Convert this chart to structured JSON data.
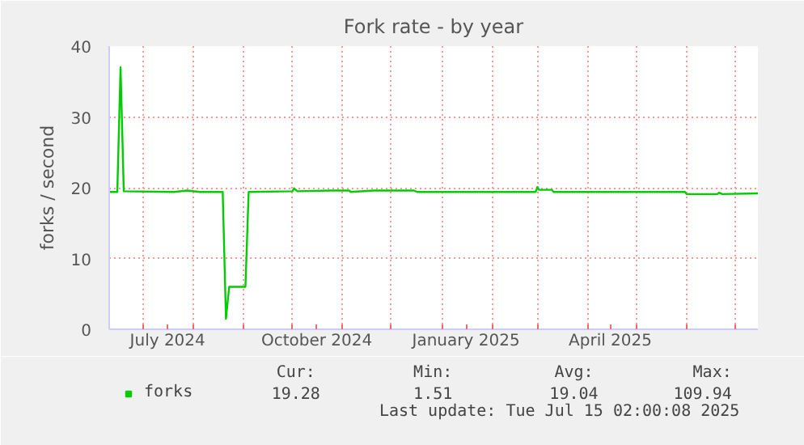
{
  "chart_data": {
    "type": "line",
    "title": "Fork rate - by year",
    "ylabel": "forks / second",
    "x": [
      "2024-06-10",
      "2024-06-15",
      "2024-06-17",
      "2024-06-19",
      "2024-07-20",
      "2024-07-28",
      "2024-08-05",
      "2024-08-19",
      "2024-08-21",
      "2024-08-23",
      "2024-09-02",
      "2024-09-04",
      "2024-10-01",
      "2024-10-02",
      "2024-10-04",
      "2024-10-25",
      "2024-11-05",
      "2024-11-06",
      "2024-11-20",
      "2024-12-15",
      "2024-12-17",
      "2025-02-28",
      "2025-03-01",
      "2025-03-02",
      "2025-03-10",
      "2025-03-11",
      "2025-05-31",
      "2025-06-01",
      "2025-06-20",
      "2025-06-21",
      "2025-06-23",
      "2025-07-15"
    ],
    "series": [
      {
        "name": "forks",
        "color": "#00cc00",
        "values": [
          19.4,
          19.4,
          37.0,
          19.5,
          19.4,
          19.6,
          19.4,
          19.4,
          1.5,
          6.0,
          6.0,
          19.4,
          19.5,
          19.9,
          19.5,
          19.6,
          19.6,
          19.4,
          19.6,
          19.6,
          19.4,
          19.4,
          20.1,
          19.7,
          19.7,
          19.4,
          19.4,
          19.1,
          19.1,
          19.3,
          19.1,
          19.2
        ]
      }
    ],
    "xlim": [
      "2024-06-10",
      "2025-07-15"
    ],
    "xticks": [
      {
        "value": "2024-07-01",
        "label": null
      },
      {
        "value": "2024-07-16",
        "label": "July 2024"
      },
      {
        "value": "2024-08-01",
        "label": null
      },
      {
        "value": "2024-09-01",
        "label": null
      },
      {
        "value": "2024-10-01",
        "label": null
      },
      {
        "value": "2024-10-16",
        "label": "October 2024"
      },
      {
        "value": "2024-11-01",
        "label": null
      },
      {
        "value": "2024-12-01",
        "label": null
      },
      {
        "value": "2025-01-01",
        "label": null
      },
      {
        "value": "2025-01-16",
        "label": "January 2025"
      },
      {
        "value": "2025-02-01",
        "label": null
      },
      {
        "value": "2025-03-01",
        "label": null
      },
      {
        "value": "2025-04-01",
        "label": null
      },
      {
        "value": "2025-04-15",
        "label": "April 2025"
      },
      {
        "value": "2025-05-01",
        "label": null
      },
      {
        "value": "2025-06-01",
        "label": null
      },
      {
        "value": "2025-07-01",
        "label": null
      }
    ],
    "ylim": [
      0,
      40
    ],
    "yticks": [
      0,
      10,
      20,
      30,
      40
    ],
    "grid": true,
    "legend": "bottom left",
    "marker": "none",
    "line_style": "solid",
    "annotations": [
      "Cur:",
      "Min:",
      "Avg:",
      "Max:",
      "19.28",
      "1.51",
      "19.04",
      "109.94",
      "Last update: Tue Jul 15 02:00:08 2025"
    ]
  }
}
